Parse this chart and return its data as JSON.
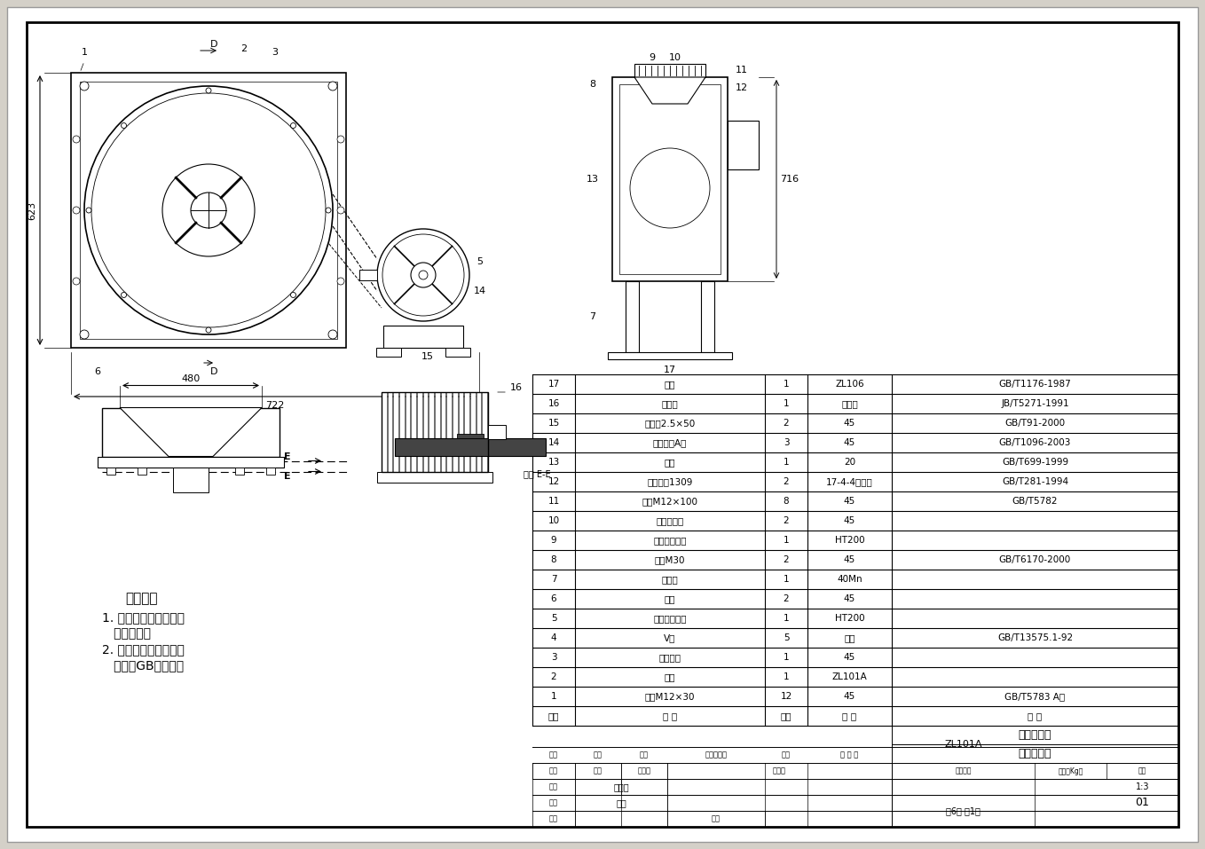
{
  "bg_color": "#d4d0c8",
  "drawing_bg": "#ffffff",
  "line_color": "#000000",
  "bom_rows": [
    [
      "17",
      "叶轮",
      "1",
      "ZL106",
      "GB/T1176-1987"
    ],
    [
      "16",
      "电动机",
      "1",
      "组合件",
      "JB/T5271-1991"
    ],
    [
      "15",
      "开口销2.5×50",
      "2",
      "45",
      "GB/T91-2000"
    ],
    [
      "14",
      "普通平键A型",
      "3",
      "45",
      "GB/T1096-2003"
    ],
    [
      "13",
      "轴套",
      "1",
      "20",
      "GB/T699-1999"
    ],
    [
      "12",
      "调心轴承1309",
      "2",
      "17-4-4铅青铜",
      "GB/T281-1994"
    ],
    [
      "11",
      "螺栓M12×100",
      "8",
      "45",
      "GB/T5782"
    ],
    [
      "10",
      "进口集流气",
      "2",
      "45",
      ""
    ],
    [
      "9",
      "孔板式皮带轮",
      "1",
      "HT200",
      ""
    ],
    [
      "8",
      "螺母M30",
      "2",
      "45",
      "GB/T6170-2000"
    ],
    [
      "7",
      "风机轴",
      "1",
      "40Mn",
      ""
    ],
    [
      "6",
      "支架",
      "2",
      "45",
      ""
    ],
    [
      "5",
      "轮辐式皮带轮",
      "1",
      "HT200",
      ""
    ],
    [
      "4",
      "V带",
      "5",
      "锦纶",
      "GB/T13575.1-92"
    ],
    [
      "3",
      "蜗壳侧板",
      "1",
      "45",
      ""
    ],
    [
      "2",
      "蜗壳",
      "1",
      "ZL101A",
      ""
    ],
    [
      "1",
      "螺栓M12×30",
      "12",
      "45",
      "GB/T5783 A级"
    ],
    [
      "序号",
      "名 称",
      "数量",
      "材 料",
      "备 注"
    ]
  ],
  "title_block": {
    "university": "塔里木大学",
    "drawing_name": "离心式风机",
    "drawing_no": "ZL101A",
    "scale": "1:3",
    "sheet": "共6张 第1张",
    "sheet_no": "01",
    "drawer": "詹龙生",
    "reviewer_name": "安静"
  },
  "tech_title": "技术要求",
  "tech_line1": "1. 装配后应保证风机轴",
  "tech_line2": "   转动灵活；",
  "tech_line3": "2. 制造与验收技术条件",
  "tech_line4": "   应符合GB的规矩。",
  "dim_623": "623",
  "dim_480": "480",
  "dim_722": "722",
  "dim_716": "716"
}
